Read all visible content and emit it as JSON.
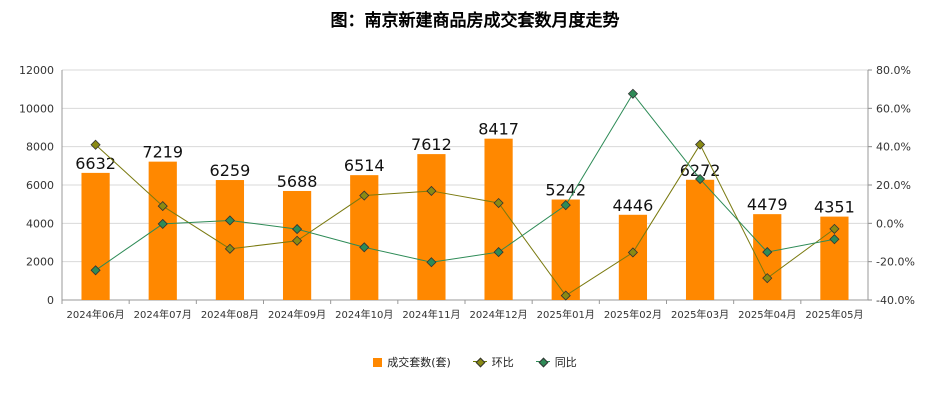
{
  "title": "图：南京新建商品房成交套数月度走势",
  "chart_data": {
    "type": "bar",
    "categories": [
      "2024年06月",
      "2024年07月",
      "2024年08月",
      "2024年09月",
      "2024年10月",
      "2024年11月",
      "2024年12月",
      "2025年01月",
      "2025年02月",
      "2025年03月",
      "2025年04月",
      "2025年05月"
    ],
    "series": [
      {
        "name": "成交套数(套)",
        "type": "bar",
        "axis": "left",
        "values": [
          6632,
          7219,
          6259,
          5688,
          6514,
          7612,
          8417,
          5242,
          4446,
          6272,
          4479,
          4351
        ]
      },
      {
        "name": "环比",
        "type": "line",
        "axis": "right",
        "values": [
          41,
          9,
          -13.3,
          -9.1,
          14.5,
          16.9,
          10.6,
          -37.7,
          -15.2,
          41.1,
          -28.6,
          -2.9
        ]
      },
      {
        "name": "同比",
        "type": "line",
        "axis": "right",
        "values": [
          -24.5,
          -0.3,
          1.5,
          -3,
          -12.5,
          -20.3,
          -15,
          9.5,
          67.6,
          23.1,
          -15,
          -8.3
        ]
      }
    ],
    "y_left": {
      "min": 0,
      "max": 12000,
      "ticks": [
        "0",
        "2000",
        "4000",
        "6000",
        "8000",
        "10000",
        "12000"
      ]
    },
    "y_right": {
      "min": -40,
      "max": 80,
      "ticks": [
        "-40.0%",
        "-20.0%",
        "0.0%",
        "20.0%",
        "40.0%",
        "60.0%",
        "80.0%"
      ]
    },
    "grid": true,
    "legend_position": "bottom",
    "colors": {
      "bar": "#ff8800",
      "hb_line": "#7a7a10",
      "hb_marker": "#8a8a14",
      "tb_line": "#2e8b57",
      "tb_marker": "#2e8b57"
    }
  }
}
